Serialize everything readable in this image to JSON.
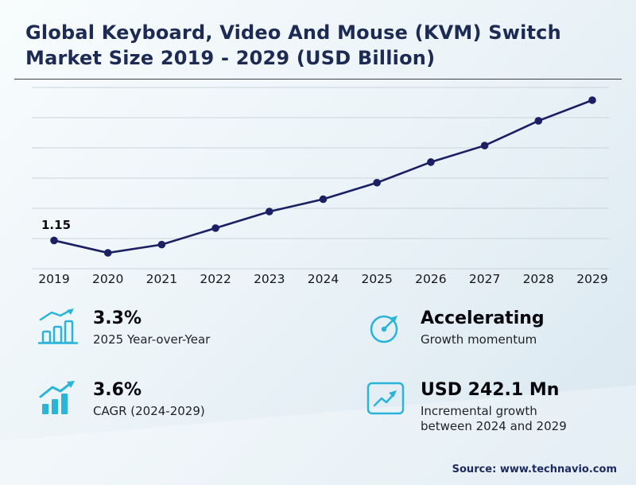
{
  "title": {
    "line1": "Global Keyboard, Video And Mouse (KVM) Switch",
    "line2": "Market Size 2019 - 2029 (USD Billion)"
  },
  "chart_data": {
    "type": "line",
    "title": "Global Keyboard, Video And Mouse (KVM) Switch Market Size 2019 - 2029 (USD Billion)",
    "x": [
      2019,
      2020,
      2021,
      2022,
      2023,
      2024,
      2025,
      2026,
      2027,
      2028,
      2029
    ],
    "values": [
      1.15,
      1.12,
      1.14,
      1.18,
      1.22,
      1.25,
      1.29,
      1.34,
      1.38,
      1.44,
      1.49
    ],
    "annotation": "1.15",
    "annotation_index": 0,
    "ylabel": "USD Billion",
    "grid": true,
    "legend": "none"
  },
  "stats": [
    {
      "value": "3.3%",
      "label": "2025 Year-over-Year",
      "icon": "bar-growth-icon"
    },
    {
      "value": "Accelerating",
      "label": "Growth momentum",
      "icon": "gauge-icon"
    },
    {
      "value": "3.6%",
      "label": "CAGR (2024-2029)",
      "icon": "bars-trend-icon"
    },
    {
      "value": "USD 242.1 Mn",
      "label": "Incremental growth between 2024 and 2029",
      "icon": "chart-box-icon"
    }
  ],
  "source": "Source: www.technavio.com",
  "colors": {
    "accent": "#29b4d8",
    "line": "#1b1f63",
    "title": "#1c2a54"
  }
}
